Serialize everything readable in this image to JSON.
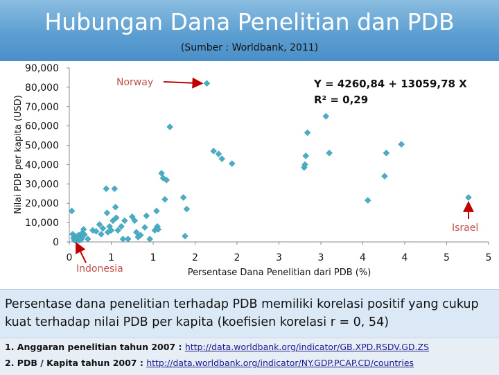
{
  "slide": {
    "title": "Hubungan Dana Penelitian dan PDB",
    "subtitle": "(Sumber : Worldbank, 2011)",
    "caption": "Persentase dana penelitian terhadap PDB memiliki korelasi positif yang cukup kuat terhadap nilai PDB per kapita (koefisien korelasi r =  0, 54)",
    "sources": [
      {
        "label": "1. Anggaran penelitian tahun 2007 : ",
        "link": "http://data.worldbank.org/indicator/GB.XPD.RSDV.GD.ZS"
      },
      {
        "label": "2. PDB / Kapita tahun 2007 : ",
        "link": "http://data.worldbank.org/indicator/NY.GDP.PCAP.CD/countries"
      }
    ]
  },
  "chart_data": {
    "type": "scatter",
    "xlabel": "Persentase Dana Penelitian dari PDB (%)",
    "ylabel": "Nilai PDB per kapita (USD)",
    "xlim": [
      0,
      5
    ],
    "ylim": [
      0,
      90000
    ],
    "x_tick_labels": [
      "0",
      "1",
      "1",
      "2",
      "2",
      "3",
      "3",
      "4",
      "4",
      "5",
      "5"
    ],
    "x_tick_values": [
      0,
      0.5,
      1,
      1.5,
      2,
      2.5,
      3,
      3.5,
      4,
      4.5,
      5
    ],
    "y_tick_labels": [
      "0",
      "10,000",
      "20,000",
      "30,000",
      "40,000",
      "50,000",
      "60,000",
      "70,000",
      "80,000",
      "90,000"
    ],
    "y_tick_values": [
      0,
      10000,
      20000,
      30000,
      40000,
      50000,
      60000,
      70000,
      80000,
      90000
    ],
    "marker_color": "#4bacc6",
    "annotations": [
      {
        "text": "Norway",
        "point": [
          1.64,
          82000
        ],
        "color": "#c0504d"
      },
      {
        "text": "Israel",
        "point": [
          4.76,
          23000
        ],
        "color": "#c0504d"
      },
      {
        "text": "Indonesia",
        "point": [
          0.05,
          1900
        ],
        "color": "#c0504d"
      }
    ],
    "regression": {
      "equation": "Y = 4260,84 + 13059,78 X",
      "r2": "R² = 0,29"
    },
    "points": [
      [
        0.03,
        16000
      ],
      [
        0.04,
        4000
      ],
      [
        0.05,
        2000
      ],
      [
        0.06,
        1000
      ],
      [
        0.07,
        3000
      ],
      [
        0.08,
        500
      ],
      [
        0.09,
        2500
      ],
      [
        0.1,
        1500
      ],
      [
        0.11,
        3500
      ],
      [
        0.12,
        800
      ],
      [
        0.13,
        2200
      ],
      [
        0.14,
        1200
      ],
      [
        0.15,
        4500
      ],
      [
        0.16,
        2800
      ],
      [
        0.17,
        6500
      ],
      [
        0.18,
        3800
      ],
      [
        0.22,
        1500
      ],
      [
        0.28,
        6000
      ],
      [
        0.32,
        5500
      ],
      [
        0.36,
        9000
      ],
      [
        0.38,
        4000
      ],
      [
        0.4,
        7000
      ],
      [
        0.44,
        27500
      ],
      [
        0.45,
        15000
      ],
      [
        0.46,
        5000
      ],
      [
        0.48,
        8000
      ],
      [
        0.5,
        6000
      ],
      [
        0.52,
        11000
      ],
      [
        0.54,
        27500
      ],
      [
        0.55,
        18000
      ],
      [
        0.56,
        12500
      ],
      [
        0.58,
        6000
      ],
      [
        0.62,
        8000
      ],
      [
        0.64,
        1500
      ],
      [
        0.66,
        11000
      ],
      [
        0.7,
        1500
      ],
      [
        0.75,
        13000
      ],
      [
        0.78,
        11000
      ],
      [
        0.8,
        5000
      ],
      [
        0.82,
        2500
      ],
      [
        0.85,
        3500
      ],
      [
        0.9,
        7500
      ],
      [
        0.92,
        13500
      ],
      [
        0.96,
        1500
      ],
      [
        1.02,
        6000
      ],
      [
        1.04,
        16000
      ],
      [
        1.05,
        8000
      ],
      [
        1.06,
        6500
      ],
      [
        1.1,
        35500
      ],
      [
        1.12,
        33000
      ],
      [
        1.14,
        22000
      ],
      [
        1.16,
        32000
      ],
      [
        1.2,
        59500
      ],
      [
        1.36,
        23000
      ],
      [
        1.4,
        17000
      ],
      [
        1.38,
        3000
      ],
      [
        1.64,
        82000
      ],
      [
        1.72,
        47000
      ],
      [
        1.78,
        45500
      ],
      [
        1.82,
        43000
      ],
      [
        1.94,
        40500
      ],
      [
        2.8,
        38500
      ],
      [
        2.81,
        40000
      ],
      [
        2.82,
        44500
      ],
      [
        2.84,
        56500
      ],
      [
        3.06,
        65000
      ],
      [
        3.1,
        46000
      ],
      [
        3.56,
        21500
      ],
      [
        3.76,
        34000
      ],
      [
        3.78,
        46000
      ],
      [
        3.96,
        50500
      ],
      [
        4.76,
        23000
      ]
    ]
  }
}
